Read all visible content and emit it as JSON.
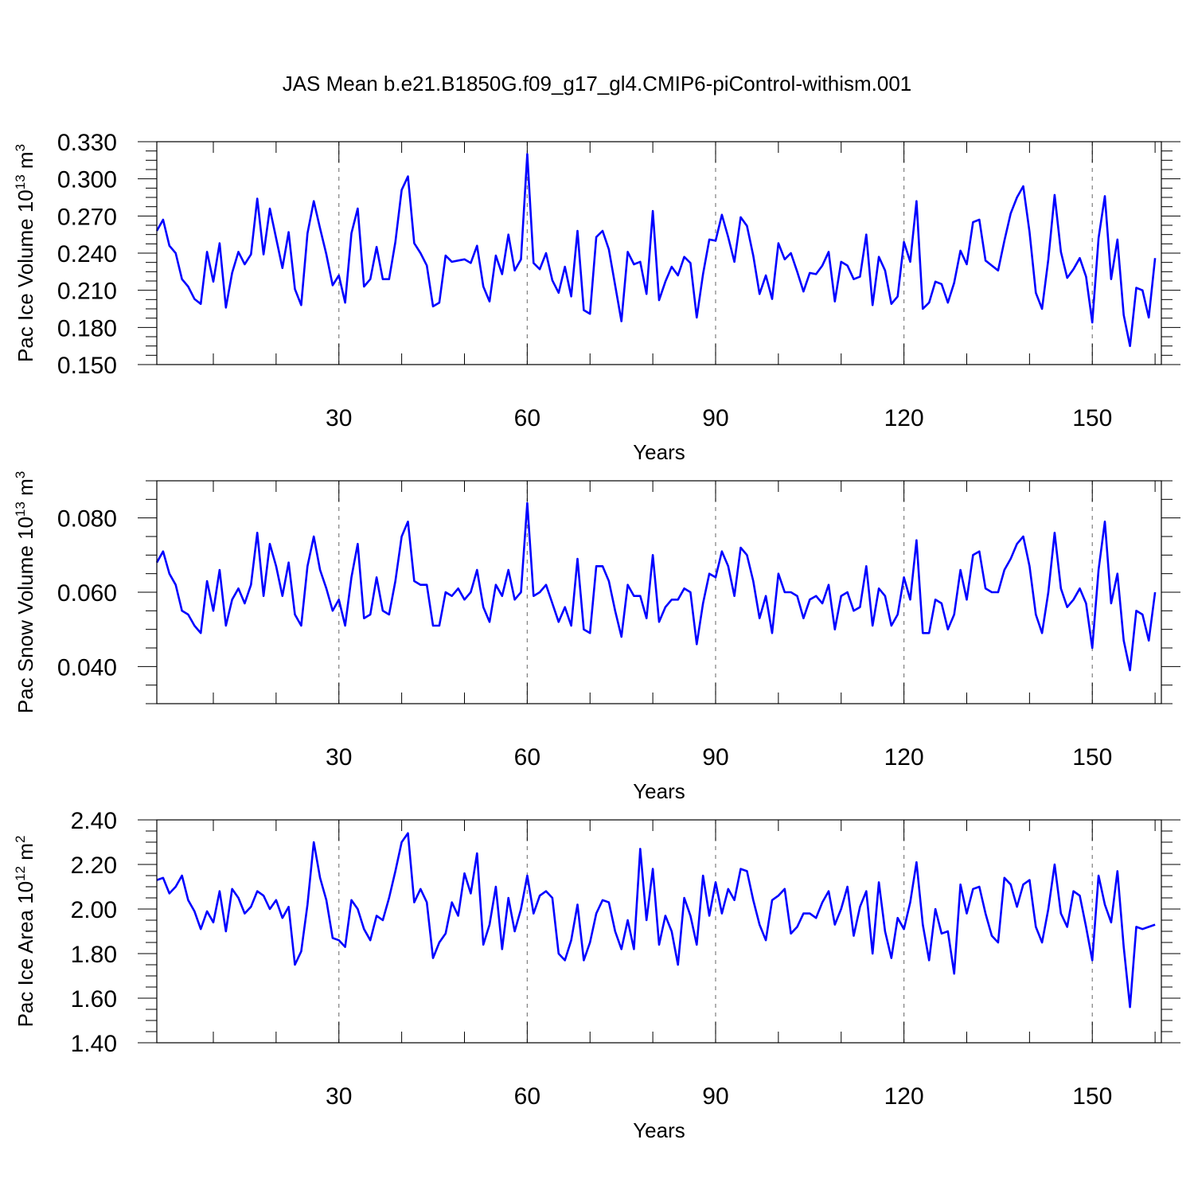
{
  "title": "JAS Mean b.e21.B1850G.f09_g17_gl4.CMIP6-piControl-withism.001",
  "colors": {
    "line": "#0000ff",
    "axis": "#000000",
    "grid": "#7f7f7f"
  },
  "chart_data": [
    {
      "type": "line",
      "ylabel": {
        "base": "Pac Ice Volume 10",
        "exp": "13",
        "unit": " m",
        "unit_exp": "3"
      },
      "xlabel": "Years",
      "xlim": [
        1,
        161
      ],
      "ylim": [
        0.15,
        0.33
      ],
      "yticks": [
        "0.150",
        "0.180",
        "0.210",
        "0.240",
        "0.270",
        "0.300",
        "0.330"
      ],
      "xticks": [
        "30",
        "60",
        "90",
        "120",
        "150"
      ],
      "grid": "x-only-dashed",
      "series": [
        {
          "values": [
            0.258,
            0.267,
            0.246,
            0.24,
            0.219,
            0.213,
            0.203,
            0.199,
            0.241,
            0.217,
            0.248,
            0.196,
            0.224,
            0.241,
            0.231,
            0.239,
            0.284,
            0.239,
            0.276,
            0.252,
            0.228,
            0.257,
            0.211,
            0.198,
            0.256,
            0.282,
            0.26,
            0.239,
            0.214,
            0.222,
            0.2,
            0.256,
            0.276,
            0.213,
            0.219,
            0.245,
            0.219,
            0.219,
            0.249,
            0.291,
            0.302,
            0.248,
            0.24,
            0.23,
            0.197,
            0.2,
            0.238,
            0.233,
            0.234,
            0.235,
            0.232,
            0.246,
            0.213,
            0.201,
            0.238,
            0.223,
            0.255,
            0.226,
            0.235,
            0.32,
            0.232,
            0.227,
            0.24,
            0.218,
            0.208,
            0.229,
            0.205,
            0.258,
            0.194,
            0.191,
            0.253,
            0.258,
            0.243,
            0.214,
            0.185,
            0.241,
            0.231,
            0.233,
            0.207,
            0.274,
            0.202,
            0.217,
            0.229,
            0.222,
            0.237,
            0.232,
            0.188,
            0.223,
            0.251,
            0.25,
            0.271,
            0.253,
            0.233,
            0.269,
            0.262,
            0.238,
            0.207,
            0.222,
            0.203,
            0.248,
            0.235,
            0.24,
            0.225,
            0.209,
            0.224,
            0.223,
            0.23,
            0.241,
            0.201,
            0.233,
            0.23,
            0.219,
            0.221,
            0.255,
            0.198,
            0.237,
            0.226,
            0.199,
            0.205,
            0.249,
            0.233,
            0.282,
            0.195,
            0.2,
            0.217,
            0.215,
            0.2,
            0.216,
            0.242,
            0.231,
            0.265,
            0.267,
            0.234,
            0.23,
            0.226,
            0.25,
            0.272,
            0.285,
            0.294,
            0.257,
            0.208,
            0.195,
            0.235,
            0.287,
            0.241,
            0.22,
            0.227,
            0.236,
            0.221,
            0.184,
            0.252,
            0.286,
            0.219,
            0.251,
            0.19,
            0.165,
            0.212,
            0.21,
            0.188,
            0.236
          ]
        }
      ]
    },
    {
      "type": "line",
      "ylabel": {
        "base": "Pac Snow Volume 10",
        "exp": "13",
        "unit": " m",
        "unit_exp": "3"
      },
      "xlabel": "Years",
      "xlim": [
        1,
        161
      ],
      "ylim": [
        0.03,
        0.09
      ],
      "yticks": [
        "0.040",
        "0.060",
        "0.080"
      ],
      "xticks": [
        "30",
        "60",
        "90",
        "120",
        "150"
      ],
      "grid": "x-only-dashed",
      "series": [
        {
          "values": [
            0.068,
            0.071,
            0.065,
            0.062,
            0.055,
            0.054,
            0.051,
            0.049,
            0.063,
            0.055,
            0.066,
            0.051,
            0.058,
            0.061,
            0.057,
            0.062,
            0.076,
            0.059,
            0.073,
            0.067,
            0.059,
            0.068,
            0.054,
            0.051,
            0.067,
            0.075,
            0.066,
            0.061,
            0.055,
            0.058,
            0.051,
            0.064,
            0.073,
            0.053,
            0.054,
            0.064,
            0.055,
            0.054,
            0.063,
            0.075,
            0.079,
            0.063,
            0.062,
            0.062,
            0.051,
            0.051,
            0.06,
            0.059,
            0.061,
            0.058,
            0.06,
            0.066,
            0.056,
            0.052,
            0.062,
            0.059,
            0.066,
            0.058,
            0.06,
            0.084,
            0.059,
            0.06,
            0.062,
            0.057,
            0.052,
            0.056,
            0.051,
            0.069,
            0.05,
            0.049,
            0.067,
            0.067,
            0.063,
            0.055,
            0.048,
            0.062,
            0.059,
            0.059,
            0.053,
            0.07,
            0.052,
            0.056,
            0.058,
            0.058,
            0.061,
            0.06,
            0.046,
            0.057,
            0.065,
            0.064,
            0.071,
            0.067,
            0.059,
            0.072,
            0.07,
            0.063,
            0.053,
            0.059,
            0.049,
            0.065,
            0.06,
            0.06,
            0.059,
            0.053,
            0.058,
            0.059,
            0.057,
            0.062,
            0.05,
            0.059,
            0.06,
            0.055,
            0.056,
            0.067,
            0.051,
            0.061,
            0.059,
            0.051,
            0.054,
            0.064,
            0.058,
            0.074,
            0.049,
            0.049,
            0.058,
            0.057,
            0.05,
            0.054,
            0.066,
            0.058,
            0.07,
            0.071,
            0.061,
            0.06,
            0.06,
            0.066,
            0.069,
            0.073,
            0.075,
            0.067,
            0.054,
            0.049,
            0.06,
            0.076,
            0.061,
            0.056,
            0.058,
            0.061,
            0.057,
            0.045,
            0.066,
            0.079,
            0.057,
            0.065,
            0.047,
            0.039,
            0.055,
            0.054,
            0.047,
            0.06
          ]
        }
      ]
    },
    {
      "type": "line",
      "ylabel": {
        "base": "Pac Ice Area 10",
        "exp": "12",
        "unit": " m",
        "unit_exp": "2"
      },
      "xlabel": "Years",
      "xlim": [
        1,
        161
      ],
      "ylim": [
        1.4,
        2.4
      ],
      "yticks": [
        "1.40",
        "1.60",
        "1.80",
        "2.00",
        "2.20",
        "2.40"
      ],
      "xticks": [
        "30",
        "60",
        "90",
        "120",
        "150"
      ],
      "grid": "x-only-dashed",
      "series": [
        {
          "values": [
            2.13,
            2.14,
            2.07,
            2.1,
            2.15,
            2.04,
            1.99,
            1.91,
            1.99,
            1.94,
            2.08,
            1.9,
            2.09,
            2.05,
            1.98,
            2.01,
            2.08,
            2.06,
            2.0,
            2.04,
            1.96,
            2.01,
            1.75,
            1.81,
            2.02,
            2.3,
            2.14,
            2.04,
            1.87,
            1.86,
            1.83,
            2.04,
            2.0,
            1.91,
            1.86,
            1.97,
            1.95,
            2.05,
            2.17,
            2.3,
            2.34,
            2.03,
            2.09,
            2.03,
            1.78,
            1.85,
            1.89,
            2.03,
            1.97,
            2.16,
            2.07,
            2.25,
            1.84,
            1.93,
            2.1,
            1.82,
            2.05,
            1.9,
            2.0,
            2.15,
            1.98,
            2.06,
            2.08,
            2.05,
            1.8,
            1.77,
            1.86,
            2.02,
            1.77,
            1.85,
            1.98,
            2.04,
            2.03,
            1.9,
            1.82,
            1.95,
            1.82,
            2.27,
            1.95,
            2.18,
            1.84,
            1.97,
            1.9,
            1.75,
            2.05,
            1.97,
            1.84,
            2.15,
            1.97,
            2.12,
            1.98,
            2.09,
            2.04,
            2.18,
            2.17,
            2.04,
            1.93,
            1.86,
            2.04,
            2.06,
            2.09,
            1.89,
            1.92,
            1.98,
            1.98,
            1.96,
            2.03,
            2.08,
            1.93,
            2.0,
            2.1,
            1.88,
            2.01,
            2.08,
            1.8,
            2.12,
            1.9,
            1.78,
            1.96,
            1.91,
            2.03,
            2.21,
            1.93,
            1.77,
            2.0,
            1.89,
            1.9,
            1.71,
            2.11,
            1.98,
            2.09,
            2.1,
            1.98,
            1.88,
            1.85,
            2.14,
            2.11,
            2.01,
            2.11,
            2.13,
            1.92,
            1.85,
            2.0,
            2.2,
            1.98,
            1.92,
            2.08,
            2.06,
            1.92,
            1.77,
            2.15,
            2.02,
            1.94,
            2.17,
            1.83,
            1.56,
            1.92,
            1.91,
            1.92,
            1.93
          ]
        }
      ]
    }
  ]
}
